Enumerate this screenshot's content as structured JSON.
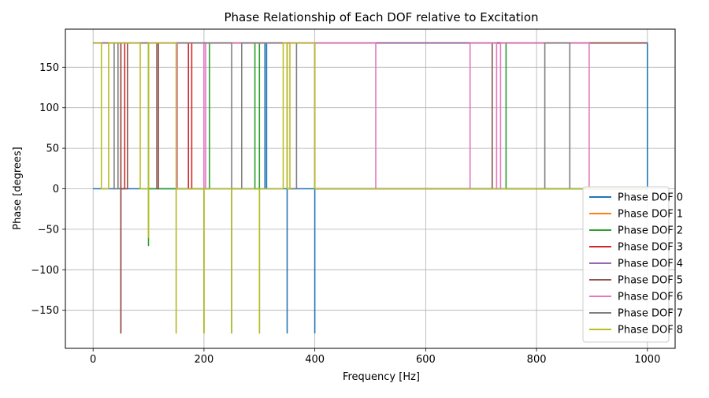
{
  "chart_data": {
    "type": "line",
    "title": "Phase Relationship of Each DOF relative to Excitation",
    "xlabel": "Frequency [Hz]",
    "ylabel": "Phase [degrees]",
    "xlim": [
      -50,
      1050
    ],
    "ylim": [
      -197,
      197
    ],
    "x_ticks": [
      0,
      200,
      400,
      600,
      800,
      1000
    ],
    "y_ticks": [
      -150,
      -100,
      -50,
      0,
      50,
      100,
      150
    ],
    "grid": true,
    "legend_position": "lower-right",
    "series": [
      {
        "name": "Phase DOF 0",
        "color": "#1f77b4",
        "points": [
          [
            0,
            180
          ],
          [
            310,
            180
          ],
          [
            310,
            0
          ],
          [
            313,
            0
          ],
          [
            313,
            180
          ],
          [
            1000,
            180
          ],
          [
            1000,
            0
          ],
          [
            350,
            0
          ],
          [
            350,
            -178
          ],
          [
            350,
            0
          ],
          [
            400,
            0
          ],
          [
            400,
            -178
          ],
          [
            400,
            0
          ],
          [
            300,
            0
          ],
          [
            300,
            -178
          ],
          [
            300,
            0
          ],
          [
            250,
            0
          ],
          [
            250,
            -178
          ],
          [
            250,
            0
          ],
          [
            0,
            0
          ]
        ]
      },
      {
        "name": "Phase DOF 1",
        "color": "#ff7f0e",
        "points": [
          [
            0,
            180
          ],
          [
            1000,
            180
          ]
        ]
      },
      {
        "name": "Phase DOF 2",
        "color": "#2ca02c",
        "points": [
          [
            0,
            180
          ],
          [
            100,
            180
          ],
          [
            100,
            -70
          ],
          [
            100,
            0
          ],
          [
            150,
            0
          ],
          [
            150,
            -178
          ],
          [
            150,
            0
          ],
          [
            200,
            0
          ],
          [
            200,
            -178
          ],
          [
            200,
            0
          ],
          [
            210,
            0
          ],
          [
            210,
            180
          ],
          [
            292,
            180
          ],
          [
            292,
            0
          ],
          [
            300,
            0
          ],
          [
            300,
            180
          ],
          [
            745,
            180
          ],
          [
            745,
            0
          ],
          [
            1000,
            0
          ]
        ]
      },
      {
        "name": "Phase DOF 3",
        "color": "#d62728",
        "points": [
          [
            0,
            180
          ],
          [
            50,
            180
          ],
          [
            50,
            -178
          ],
          [
            50,
            0
          ],
          [
            57,
            0
          ],
          [
            57,
            180
          ],
          [
            172,
            180
          ],
          [
            172,
            0
          ],
          [
            178,
            0
          ],
          [
            178,
            180
          ],
          [
            1000,
            180
          ]
        ]
      },
      {
        "name": "Phase DOF 4",
        "color": "#9467bd",
        "points": [
          [
            0,
            180
          ],
          [
            1000,
            180
          ]
        ]
      },
      {
        "name": "Phase DOF 5",
        "color": "#8c564b",
        "points": [
          [
            0,
            180
          ],
          [
            50,
            180
          ],
          [
            50,
            -178
          ],
          [
            50,
            0
          ],
          [
            62,
            0
          ],
          [
            62,
            180
          ],
          [
            115,
            180
          ],
          [
            115,
            0
          ],
          [
            118,
            0
          ],
          [
            118,
            180
          ],
          [
            400,
            180
          ],
          [
            400,
            0
          ],
          [
            720,
            0
          ],
          [
            720,
            180
          ],
          [
            1000,
            180
          ]
        ]
      },
      {
        "name": "Phase DOF 6",
        "color": "#e377c2",
        "points": [
          [
            0,
            180
          ],
          [
            150,
            180
          ],
          [
            150,
            0
          ],
          [
            152,
            0
          ],
          [
            152,
            180
          ],
          [
            200,
            180
          ],
          [
            200,
            0
          ],
          [
            203,
            0
          ],
          [
            203,
            180
          ],
          [
            510,
            180
          ],
          [
            510,
            0
          ],
          [
            680,
            0
          ],
          [
            680,
            180
          ],
          [
            728,
            180
          ],
          [
            728,
            0
          ],
          [
            735,
            0
          ],
          [
            735,
            180
          ],
          [
            895,
            180
          ],
          [
            895,
            0
          ],
          [
            1000,
            0
          ]
        ]
      },
      {
        "name": "Phase DOF 7",
        "color": "#7f7f7f",
        "points": [
          [
            0,
            180
          ],
          [
            38,
            180
          ],
          [
            38,
            0
          ],
          [
            45,
            0
          ],
          [
            45,
            180
          ],
          [
            250,
            180
          ],
          [
            250,
            0
          ],
          [
            268,
            0
          ],
          [
            268,
            180
          ],
          [
            350,
            180
          ],
          [
            350,
            0
          ],
          [
            367,
            0
          ],
          [
            367,
            180
          ],
          [
            400,
            180
          ],
          [
            400,
            0
          ],
          [
            815,
            0
          ],
          [
            815,
            180
          ],
          [
            860,
            180
          ],
          [
            860,
            0
          ],
          [
            1000,
            0
          ]
        ]
      },
      {
        "name": "Phase DOF 8",
        "color": "#bcbd22",
        "points": [
          [
            0,
            180
          ],
          [
            15,
            180
          ],
          [
            15,
            0
          ],
          [
            28,
            0
          ],
          [
            28,
            180
          ],
          [
            85,
            180
          ],
          [
            85,
            0
          ],
          [
            100,
            0
          ],
          [
            100,
            -60
          ],
          [
            100,
            180
          ],
          [
            150,
            180
          ],
          [
            150,
            -178
          ],
          [
            150,
            0
          ],
          [
            200,
            0
          ],
          [
            200,
            -178
          ],
          [
            200,
            0
          ],
          [
            250,
            0
          ],
          [
            250,
            -178
          ],
          [
            250,
            0
          ],
          [
            300,
            0
          ],
          [
            300,
            -178
          ],
          [
            300,
            0
          ],
          [
            343,
            0
          ],
          [
            343,
            180
          ],
          [
            350,
            180
          ],
          [
            350,
            0
          ],
          [
            355,
            0
          ],
          [
            355,
            180
          ],
          [
            400,
            180
          ],
          [
            400,
            25
          ],
          [
            400,
            0
          ],
          [
            1000,
            0
          ]
        ]
      }
    ]
  }
}
